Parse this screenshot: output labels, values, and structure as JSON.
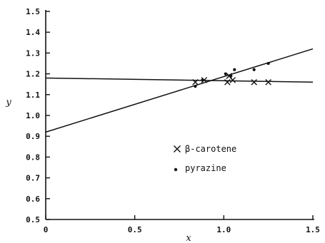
{
  "chart_data": {
    "type": "scatter",
    "title": "",
    "xlabel": "x",
    "ylabel": "y",
    "xlim": [
      0,
      1.5
    ],
    "ylim": [
      0.5,
      1.5
    ],
    "x_ticks": [
      "0",
      "0.5",
      "1.0",
      "1.5"
    ],
    "y_ticks": [
      "0.5",
      "0.6",
      "0.7",
      "0.8",
      "0.9",
      "1.0",
      "1.1",
      "1.2",
      "1.3",
      "1.4",
      "1.5"
    ],
    "grid": false,
    "legend_position": "center-right",
    "series": [
      {
        "name": "β-carotene",
        "marker": "x",
        "color": "#111111",
        "x": [
          0.84,
          0.89,
          1.02,
          1.03,
          1.05,
          1.17,
          1.25
        ],
        "y": [
          1.16,
          1.17,
          1.16,
          1.19,
          1.17,
          1.16,
          1.16
        ],
        "fit": {
          "x": [
            0,
            1.5
          ],
          "y": [
            1.18,
            1.16
          ]
        }
      },
      {
        "name": "pyrazine",
        "marker": "dot",
        "color": "#111111",
        "x": [
          0.84,
          0.88,
          1.01,
          1.04,
          1.06,
          1.17,
          1.25
        ],
        "y": [
          1.14,
          1.17,
          1.2,
          1.19,
          1.22,
          1.22,
          1.25
        ],
        "fit": {
          "x": [
            0,
            1.5
          ],
          "y": [
            0.92,
            1.32
          ]
        }
      }
    ]
  }
}
